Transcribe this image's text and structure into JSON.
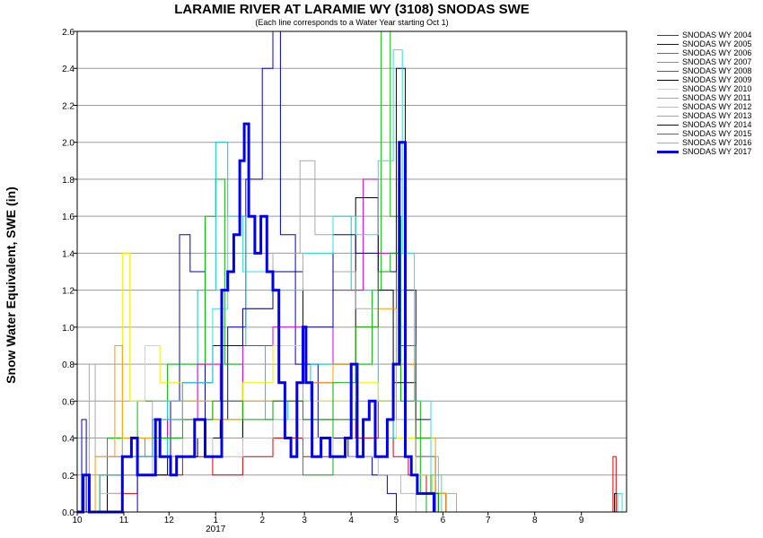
{
  "chart_data": {
    "type": "line",
    "title": "LARAMIE RIVER AT LARAMIE WY (3108) SNODAS SWE",
    "subtitle": "(Each line corresponds to a Water Year starting Oct 1)",
    "ylabel": "Snow Water Equivalent, SWE (in)",
    "xlabel": "",
    "x_year_label": "2017",
    "xlim": [
      0,
      365
    ],
    "ylim": [
      0,
      2.6
    ],
    "grid": true,
    "legend_position": "right-outside",
    "x_ticks": [
      {
        "day": 0,
        "label": "10"
      },
      {
        "day": 31,
        "label": "11"
      },
      {
        "day": 61,
        "label": "12"
      },
      {
        "day": 92,
        "label": "1"
      },
      {
        "day": 123,
        "label": "2"
      },
      {
        "day": 151,
        "label": "3"
      },
      {
        "day": 182,
        "label": "4"
      },
      {
        "day": 212,
        "label": "5"
      },
      {
        "day": 243,
        "label": "6"
      },
      {
        "day": 273,
        "label": "7"
      },
      {
        "day": 304,
        "label": "8"
      },
      {
        "day": 335,
        "label": "9"
      }
    ],
    "y_ticks": [
      "0.0",
      "0.2",
      "0.4",
      "0.6",
      "0.8",
      "1.0",
      "1.2",
      "1.4",
      "1.6",
      "1.8",
      "2.0",
      "2.2",
      "2.4",
      "2.6"
    ],
    "series": [
      {
        "name": "SNODAS WY 2004",
        "color": "#dd0000",
        "width": 1,
        "points": [
          [
            0,
            0
          ],
          [
            20,
            0.1
          ],
          [
            40,
            0.2
          ],
          [
            70,
            0.3
          ],
          [
            90,
            0.2
          ],
          [
            110,
            0.3
          ],
          [
            130,
            0.4
          ],
          [
            150,
            0.3
          ],
          [
            170,
            0.5
          ],
          [
            185,
            0.4
          ],
          [
            200,
            0.6
          ],
          [
            210,
            0.3
          ],
          [
            220,
            0.2
          ],
          [
            232,
            0.1
          ],
          [
            238,
            0
          ],
          [
            354,
            0
          ],
          [
            356,
            0.3
          ],
          [
            358,
            0
          ]
        ]
      },
      {
        "name": "SNODAS WY 2005",
        "color": "#0000cc",
        "width": 1,
        "points": [
          [
            0,
            0
          ],
          [
            3,
            0.5
          ],
          [
            6,
            0
          ],
          [
            40,
            0.3
          ],
          [
            62,
            0.6
          ],
          [
            68,
            1.5
          ],
          [
            75,
            1.3
          ],
          [
            85,
            0.5
          ],
          [
            100,
            1.0
          ],
          [
            112,
            1.8
          ],
          [
            123,
            2.4
          ],
          [
            130,
            2.6
          ],
          [
            135,
            1.5
          ],
          [
            145,
            0.8
          ],
          [
            160,
            0.4
          ],
          [
            180,
            0.3
          ],
          [
            196,
            0.2
          ],
          [
            206,
            0.1
          ],
          [
            212,
            0
          ]
        ]
      },
      {
        "name": "SNODAS WY 2006",
        "color": "#00bb00",
        "width": 1,
        "points": [
          [
            0,
            0
          ],
          [
            20,
            0.4
          ],
          [
            40,
            0.6
          ],
          [
            60,
            0.8
          ],
          [
            85,
            1.6
          ],
          [
            92,
            1.8
          ],
          [
            98,
            0.8
          ],
          [
            110,
            0.4
          ],
          [
            130,
            0.6
          ],
          [
            150,
            0.2
          ],
          [
            170,
            0.5
          ],
          [
            185,
            0.8
          ],
          [
            196,
            1.2
          ],
          [
            202,
            2.6
          ],
          [
            208,
            1.6
          ],
          [
            215,
            0.6
          ],
          [
            228,
            0.1
          ],
          [
            232,
            0
          ]
        ]
      },
      {
        "name": "SNODAS WY 2007",
        "color": "#00cccc",
        "width": 1,
        "points": [
          [
            0,
            0
          ],
          [
            15,
            0.2
          ],
          [
            30,
            0.4
          ],
          [
            45,
            0.3
          ],
          [
            60,
            0.6
          ],
          [
            80,
            1.2
          ],
          [
            92,
            2.0
          ],
          [
            100,
            1.6
          ],
          [
            112,
            0.9
          ],
          [
            125,
            0.5
          ],
          [
            140,
            0.6
          ],
          [
            155,
            0.8
          ],
          [
            170,
            1.6
          ],
          [
            182,
            1.2
          ],
          [
            200,
            0.6
          ],
          [
            210,
            0.4
          ],
          [
            225,
            0.2
          ],
          [
            236,
            0.1
          ],
          [
            240,
            0
          ]
        ]
      },
      {
        "name": "SNODAS WY 2008",
        "color": "#dd00dd",
        "width": 1,
        "points": [
          [
            0,
            0
          ],
          [
            20,
            0.3
          ],
          [
            40,
            0.4
          ],
          [
            60,
            0.5
          ],
          [
            80,
            0.8
          ],
          [
            95,
            0.6
          ],
          [
            110,
            0.9
          ],
          [
            130,
            1.0
          ],
          [
            150,
            0.7
          ],
          [
            170,
            1.2
          ],
          [
            190,
            1.8
          ],
          [
            200,
            1.4
          ],
          [
            212,
            0.8
          ],
          [
            225,
            0.3
          ],
          [
            238,
            0.1
          ],
          [
            245,
            0
          ]
        ]
      },
      {
        "name": "SNODAS WY 2009",
        "color": "#000000",
        "width": 1,
        "points": [
          [
            0,
            0
          ],
          [
            20,
            0.2
          ],
          [
            40,
            0.2
          ],
          [
            60,
            0.3
          ],
          [
            80,
            0.4
          ],
          [
            95,
            0.5
          ],
          [
            110,
            0.4
          ],
          [
            130,
            0.6
          ],
          [
            150,
            0.5
          ],
          [
            170,
            0.8
          ],
          [
            185,
            1.7
          ],
          [
            200,
            1.2
          ],
          [
            210,
            0.7
          ],
          [
            225,
            0.3
          ],
          [
            238,
            0.1
          ],
          [
            245,
            0
          ],
          [
            355,
            0
          ],
          [
            357,
            0.1
          ],
          [
            359,
            0
          ]
        ]
      },
      {
        "name": "SNODAS WY 2010",
        "color": "#eeee00",
        "width": 1,
        "points": [
          [
            0,
            0
          ],
          [
            15,
            0.2
          ],
          [
            30,
            1.4
          ],
          [
            35,
            0.6
          ],
          [
            45,
            0.9
          ],
          [
            55,
            0.7
          ],
          [
            70,
            0.6
          ],
          [
            90,
            0.5
          ],
          [
            110,
            0.7
          ],
          [
            130,
            0.9
          ],
          [
            150,
            0.6
          ],
          [
            170,
            0.6
          ],
          [
            185,
            0.7
          ],
          [
            200,
            0.6
          ],
          [
            212,
            0.4
          ],
          [
            225,
            0.2
          ],
          [
            236,
            0.1
          ],
          [
            240,
            0
          ]
        ]
      },
      {
        "name": "SNODAS WY 2011",
        "color": "#aaaaaa",
        "width": 1,
        "points": [
          [
            0,
            0
          ],
          [
            8,
            0.8
          ],
          [
            12,
            0.3
          ],
          [
            30,
            0.4
          ],
          [
            50,
            0.6
          ],
          [
            70,
            0.7
          ],
          [
            90,
            0.9
          ],
          [
            110,
            1.1
          ],
          [
            130,
            1.4
          ],
          [
            148,
            1.9
          ],
          [
            158,
            1.5
          ],
          [
            170,
            1.3
          ],
          [
            185,
            1.1
          ],
          [
            200,
            0.8
          ],
          [
            212,
            0.5
          ],
          [
            225,
            0.3
          ],
          [
            240,
            0.1
          ],
          [
            252,
            0
          ]
        ]
      },
      {
        "name": "SNODAS WY 2012",
        "color": "#bbbbbb",
        "width": 1,
        "points": [
          [
            0,
            0
          ],
          [
            15,
            0.1
          ],
          [
            30,
            0.2
          ],
          [
            50,
            0.3
          ],
          [
            70,
            0.4
          ],
          [
            90,
            0.3
          ],
          [
            110,
            0.4
          ],
          [
            130,
            0.5
          ],
          [
            150,
            0.4
          ],
          [
            170,
            0.3
          ],
          [
            185,
            0.3
          ],
          [
            200,
            0.2
          ],
          [
            215,
            0.1
          ],
          [
            225,
            0
          ]
        ]
      },
      {
        "name": "SNODAS WY 2013",
        "color": "#ff9900",
        "width": 1,
        "points": [
          [
            0,
            0
          ],
          [
            12,
            0.3
          ],
          [
            25,
            0.9
          ],
          [
            30,
            0.4
          ],
          [
            50,
            0.5
          ],
          [
            70,
            0.6
          ],
          [
            90,
            0.5
          ],
          [
            110,
            0.6
          ],
          [
            130,
            0.6
          ],
          [
            150,
            0.7
          ],
          [
            170,
            0.8
          ],
          [
            185,
            1.0
          ],
          [
            200,
            1.1
          ],
          [
            212,
            0.8
          ],
          [
            225,
            0.4
          ],
          [
            238,
            0.1
          ],
          [
            245,
            0
          ]
        ]
      },
      {
        "name": "SNODAS WY 2014",
        "color": "#000088",
        "width": 1,
        "points": [
          [
            0,
            0
          ],
          [
            15,
            0.2
          ],
          [
            30,
            0.3
          ],
          [
            50,
            0.5
          ],
          [
            70,
            0.7
          ],
          [
            90,
            0.9
          ],
          [
            110,
            1.1
          ],
          [
            130,
            1.3
          ],
          [
            150,
            1.0
          ],
          [
            170,
            1.5
          ],
          [
            185,
            1.4
          ],
          [
            200,
            1.3
          ],
          [
            212,
            2.4
          ],
          [
            218,
            1.2
          ],
          [
            225,
            0.5
          ],
          [
            235,
            0.1
          ],
          [
            240,
            0
          ]
        ]
      },
      {
        "name": "SNODAS WY 2015",
        "color": "#00aa00",
        "width": 1,
        "points": [
          [
            0,
            0
          ],
          [
            15,
            0.2
          ],
          [
            30,
            0.3
          ],
          [
            50,
            0.4
          ],
          [
            70,
            0.5
          ],
          [
            90,
            0.6
          ],
          [
            110,
            0.5
          ],
          [
            130,
            0.6
          ],
          [
            150,
            0.5
          ],
          [
            170,
            0.7
          ],
          [
            185,
            1.0
          ],
          [
            200,
            1.3
          ],
          [
            208,
            1.4
          ],
          [
            215,
            0.9
          ],
          [
            225,
            0.4
          ],
          [
            235,
            0.1
          ],
          [
            240,
            0
          ]
        ]
      },
      {
        "name": "SNODAS WY 2016",
        "color": "#33dddd",
        "width": 1,
        "points": [
          [
            0,
            0
          ],
          [
            15,
            0.2
          ],
          [
            30,
            0.3
          ],
          [
            50,
            0.5
          ],
          [
            70,
            0.7
          ],
          [
            90,
            1.1
          ],
          [
            100,
            1.6
          ],
          [
            110,
            1.3
          ],
          [
            130,
            1.2
          ],
          [
            150,
            1.4
          ],
          [
            170,
            1.6
          ],
          [
            185,
            1.5
          ],
          [
            200,
            1.9
          ],
          [
            210,
            2.5
          ],
          [
            216,
            1.4
          ],
          [
            224,
            0.6
          ],
          [
            235,
            0.2
          ],
          [
            242,
            0
          ],
          [
            357,
            0
          ],
          [
            359,
            0.1
          ],
          [
            362,
            0
          ]
        ]
      },
      {
        "name": "SNODAS WY 2017",
        "color": "#0000ee",
        "width": 3,
        "points": [
          [
            0,
            0
          ],
          [
            4,
            0.2
          ],
          [
            8,
            0
          ],
          [
            28,
            0
          ],
          [
            30,
            0.3
          ],
          [
            36,
            0.4
          ],
          [
            40,
            0.2
          ],
          [
            48,
            0.2
          ],
          [
            52,
            0.5
          ],
          [
            55,
            0.3
          ],
          [
            62,
            0.2
          ],
          [
            66,
            0.3
          ],
          [
            72,
            0.3
          ],
          [
            78,
            0.5
          ],
          [
            85,
            0.3
          ],
          [
            92,
            0.3
          ],
          [
            96,
            1.2
          ],
          [
            100,
            1.3
          ],
          [
            104,
            1.5
          ],
          [
            108,
            1.9
          ],
          [
            111,
            2.1
          ],
          [
            114,
            1.6
          ],
          [
            118,
            1.4
          ],
          [
            122,
            1.6
          ],
          [
            126,
            1.3
          ],
          [
            130,
            1.2
          ],
          [
            134,
            0.7
          ],
          [
            138,
            0.4
          ],
          [
            142,
            0.3
          ],
          [
            146,
            0.7
          ],
          [
            150,
            1.0
          ],
          [
            152,
            0.7
          ],
          [
            156,
            0.3
          ],
          [
            162,
            0.4
          ],
          [
            168,
            0.3
          ],
          [
            172,
            0.3
          ],
          [
            178,
            0.4
          ],
          [
            182,
            0.8
          ],
          [
            186,
            0.3
          ],
          [
            190,
            0.5
          ],
          [
            194,
            0.6
          ],
          [
            198,
            0.3
          ],
          [
            202,
            0.3
          ],
          [
            206,
            0.5
          ],
          [
            210,
            0.8
          ],
          [
            214,
            2.0
          ],
          [
            218,
            0.3
          ],
          [
            222,
            0.2
          ],
          [
            226,
            0.1
          ],
          [
            235,
            0.1
          ],
          [
            237,
            0
          ]
        ]
      }
    ]
  }
}
